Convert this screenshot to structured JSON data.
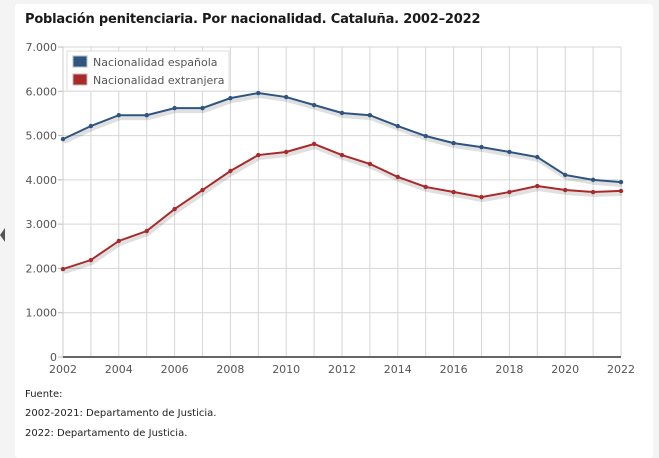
{
  "chart_data": {
    "type": "line",
    "title": "Población penitenciaria. Por nacionalidad. Cataluña. 2002–2022",
    "xlabel": "",
    "ylabel": "",
    "x": [
      2002,
      2003,
      2004,
      2005,
      2006,
      2007,
      2008,
      2009,
      2010,
      2011,
      2012,
      2013,
      2014,
      2015,
      2016,
      2017,
      2018,
      2019,
      2020,
      2021,
      2022
    ],
    "xticks": [
      "2002",
      "2004",
      "2006",
      "2008",
      "2010",
      "2012",
      "2014",
      "2016",
      "2018",
      "2020",
      "2022"
    ],
    "ylim": [
      0,
      7000
    ],
    "yticks": [
      {
        "value": 0,
        "label": "0"
      },
      {
        "value": 1000,
        "label": "1.000"
      },
      {
        "value": 2000,
        "label": "2.000"
      },
      {
        "value": 3000,
        "label": "3.000"
      },
      {
        "value": 4000,
        "label": "4.000"
      },
      {
        "value": 5000,
        "label": "5.000"
      },
      {
        "value": 6000,
        "label": "6.000"
      },
      {
        "value": 7000,
        "label": "7.000"
      }
    ],
    "grid": true,
    "legend_position": "top-left",
    "series": [
      {
        "name": "Nacionalidad española",
        "color": "#2e5580",
        "values": [
          4920,
          5215,
          5460,
          5460,
          5620,
          5620,
          5845,
          5960,
          5870,
          5690,
          5510,
          5460,
          5215,
          4990,
          4830,
          4740,
          4630,
          4515,
          4110,
          4000,
          3950
        ]
      },
      {
        "name": "Nacionalidad extranjera",
        "color": "#a82a2a",
        "values": [
          1985,
          2190,
          2620,
          2845,
          3340,
          3770,
          4200,
          4560,
          4630,
          4810,
          4560,
          4360,
          4065,
          3840,
          3725,
          3610,
          3725,
          3860,
          3770,
          3725,
          3750
        ]
      }
    ]
  },
  "source": {
    "heading": "Fuente:",
    "lines": [
      "2002-2021: Departamento de Justicia.",
      "2022: Departamento de Justicia."
    ]
  }
}
